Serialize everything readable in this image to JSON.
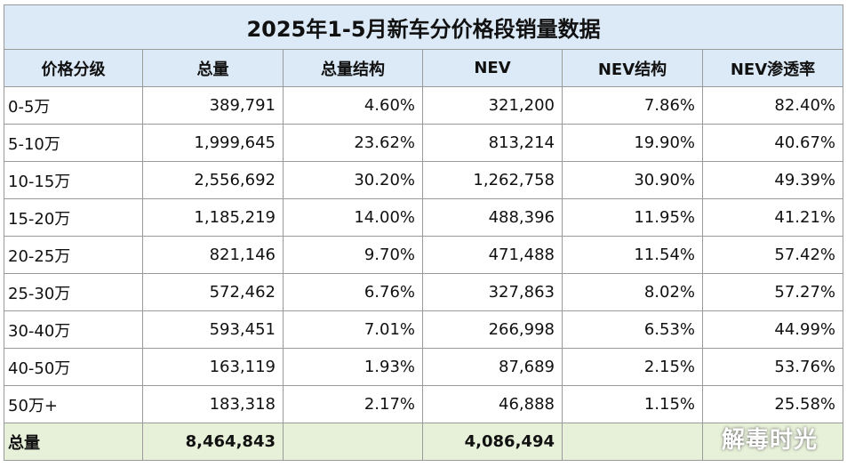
{
  "title": "2025年1-5月新车分价格段销量数据",
  "table": {
    "headers": [
      "价格分级",
      "总量",
      "总量结构",
      "NEV",
      "NEV结构",
      "NEV渗透率"
    ],
    "rows": [
      [
        "0-5万",
        "389,791",
        "4.60%",
        "321,200",
        "7.86%",
        "82.40%"
      ],
      [
        "5-10万",
        "1,999,645",
        "23.62%",
        "813,214",
        "19.90%",
        "40.67%"
      ],
      [
        "10-15万",
        "2,556,692",
        "30.20%",
        "1,262,758",
        "30.90%",
        "49.39%"
      ],
      [
        "15-20万",
        "1,185,219",
        "14.00%",
        "488,396",
        "11.95%",
        "41.21%"
      ],
      [
        "20-25万",
        "821,146",
        "9.70%",
        "471,488",
        "11.54%",
        "57.42%"
      ],
      [
        "25-30万",
        "572,462",
        "6.76%",
        "327,863",
        "8.02%",
        "57.27%"
      ],
      [
        "30-40万",
        "593,451",
        "7.01%",
        "266,998",
        "6.53%",
        "44.99%"
      ],
      [
        "40-50万",
        "163,119",
        "1.93%",
        "87,689",
        "2.15%",
        "53.76%"
      ],
      [
        "50万+",
        "183,318",
        "2.17%",
        "46,888",
        "1.15%",
        "25.58%"
      ]
    ],
    "total": {
      "label": "总量",
      "total": "8,464,843",
      "nev": "4,086,494"
    }
  },
  "watermark": "解毒时光"
}
